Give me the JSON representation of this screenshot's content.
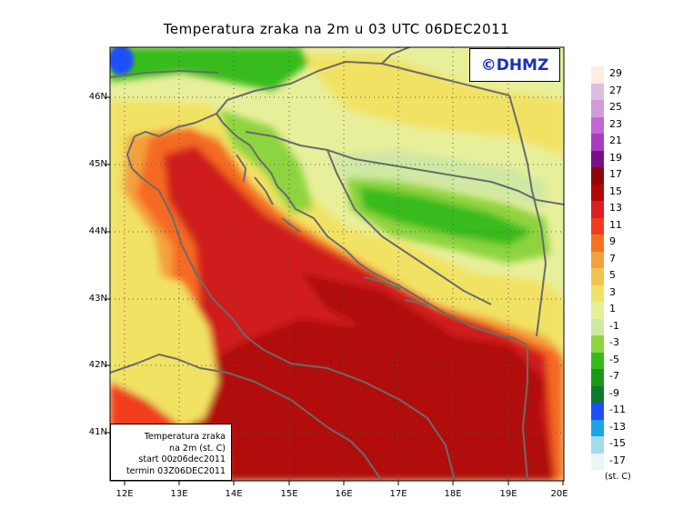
{
  "title": "Temperatura zraka na 2m u 03 UTC 06DEC2011",
  "logo_text": "©DHMZ",
  "info_box": {
    "lines": [
      "Temperatura zraka",
      "na 2m (st. C)",
      "start 00z06dec2011",
      "termin 03Z06DEC2011"
    ]
  },
  "axes": {
    "lon_labels": [
      "12E",
      "13E",
      "14E",
      "15E",
      "16E",
      "17E",
      "18E",
      "19E",
      "20E"
    ],
    "lat_labels": [
      "46N",
      "45N",
      "44N",
      "43N",
      "42N",
      "41N"
    ],
    "lon_range": [
      11.7,
      20.0
    ],
    "lat_range": [
      40.25,
      46.75
    ],
    "gridlines": "dotted"
  },
  "legend": {
    "unit": "(st. C)",
    "labels": [
      "29",
      "27",
      "25",
      "23",
      "21",
      "19",
      "17",
      "15",
      "13",
      "11",
      "9",
      "7",
      "5",
      "3",
      "1",
      "-1",
      "-3",
      "-5",
      "-7",
      "-9",
      "-11",
      "-13",
      "-15",
      "-17"
    ],
    "colors": [
      "#fbeee0",
      "#dcbfdf",
      "#d39ad9",
      "#c467d4",
      "#a83cc1",
      "#7a0f8a",
      "#8e0606",
      "#b10707",
      "#dc1e1e",
      "#f23d1f",
      "#f8721e",
      "#f3a13d",
      "#f1c54d",
      "#f2e263",
      "#e7ef96",
      "#cfe8a3",
      "#8ed43f",
      "#37bb1b",
      "#189a16",
      "#0d7a2c",
      "#1e4fff",
      "#1aa6e6",
      "#a5dbe8",
      "#e6f7f5"
    ]
  },
  "map_colors": {
    "sea_warm": "#d01c1b",
    "sea_hot": "#b10707",
    "coast_orange": "#f56a21",
    "lowland_yellow": "#f2e263",
    "pale": "#e8ef9a",
    "green_light": "#8ed43f",
    "green_dark": "#37bb1b",
    "coast_line": "#6b6b6b"
  }
}
